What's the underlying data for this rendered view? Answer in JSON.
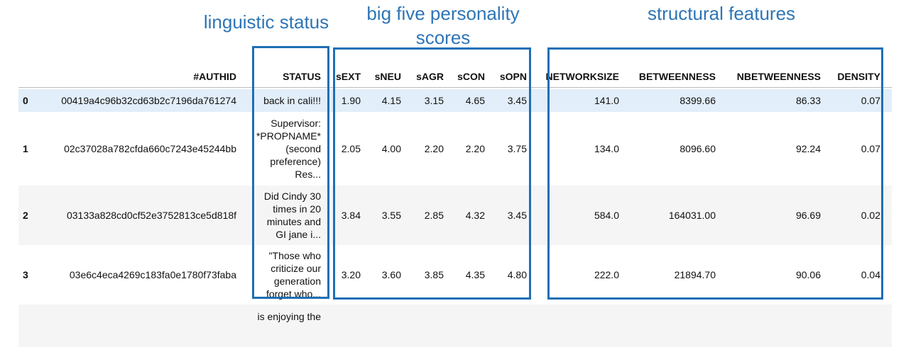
{
  "annotations": [
    "linguistic status",
    "big five personality scores",
    "structural features"
  ],
  "table": {
    "columns": [
      "#AUTHID",
      "STATUS",
      "sEXT",
      "sNEU",
      "sAGR",
      "sCON",
      "sOPN",
      "NETWORKSIZE",
      "BETWEENNESS",
      "NBETWEENNESS",
      "DENSITY"
    ],
    "rows": [
      {
        "index": "0",
        "cells": [
          "00419a4c96b32cd63b2c7196da761274",
          [
            "back in cali!!!"
          ],
          "1.90",
          "4.15",
          "3.15",
          "4.65",
          "3.45",
          "141.0",
          "8399.66",
          "86.33",
          "0.07"
        ]
      },
      {
        "index": "1",
        "cells": [
          "02c37028a782cfda660c7243e45244bb",
          [
            "Supervisor:",
            "*PROPNAME*",
            "(second",
            "preference)",
            "Res..."
          ],
          "2.05",
          "4.00",
          "2.20",
          "2.20",
          "3.75",
          "134.0",
          "8096.60",
          "92.24",
          "0.07"
        ]
      },
      {
        "index": "2",
        "cells": [
          "03133a828cd0cf52e3752813ce5d818f",
          [
            "Did Cindy 30",
            "times in 20",
            "minutes and",
            "GI jane i..."
          ],
          "3.84",
          "3.55",
          "2.85",
          "4.32",
          "3.45",
          "584.0",
          "164031.00",
          "96.69",
          "0.02"
        ]
      },
      {
        "index": "3",
        "cells": [
          "03e6c4eca4269c183fa0e1780f73faba",
          [
            "\"Those who",
            "criticize our",
            "generation",
            "forget who..."
          ],
          "3.20",
          "3.60",
          "3.85",
          "4.35",
          "4.80",
          "222.0",
          "21894.70",
          "90.06",
          "0.04"
        ]
      },
      {
        "index": "",
        "cells": [
          "",
          [
            "is enjoying the"
          ],
          "",
          "",
          "",
          "",
          "",
          "",
          "",
          "",
          ""
        ]
      }
    ]
  }
}
